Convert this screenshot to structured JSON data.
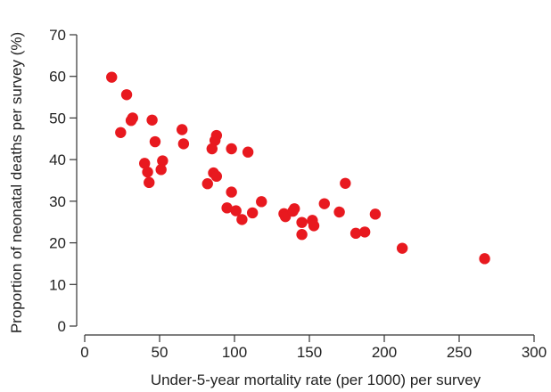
{
  "chart_data": {
    "type": "scatter",
    "title": "",
    "xlabel": "Under-5-year mortality rate (per 1000)  per survey",
    "ylabel": "Proportion of neonatal deaths per survey (%)",
    "xlim": [
      0,
      300
    ],
    "ylim": [
      0,
      70
    ],
    "xticks": [
      0,
      50,
      100,
      150,
      200,
      250,
      300
    ],
    "yticks": [
      0,
      10,
      20,
      30,
      40,
      50,
      60,
      70
    ],
    "grid": false,
    "marker_color": "#e8191f",
    "points": [
      {
        "x": 18,
        "y": 59.8
      },
      {
        "x": 28,
        "y": 55.6
      },
      {
        "x": 24,
        "y": 46.5
      },
      {
        "x": 31,
        "y": 49.4
      },
      {
        "x": 32,
        "y": 50.0
      },
      {
        "x": 45,
        "y": 49.5
      },
      {
        "x": 47,
        "y": 44.3
      },
      {
        "x": 40,
        "y": 39.1
      },
      {
        "x": 42,
        "y": 37.0
      },
      {
        "x": 43,
        "y": 34.5
      },
      {
        "x": 52,
        "y": 39.7
      },
      {
        "x": 51,
        "y": 37.6
      },
      {
        "x": 65,
        "y": 47.2
      },
      {
        "x": 66,
        "y": 43.8
      },
      {
        "x": 88,
        "y": 45.8
      },
      {
        "x": 87,
        "y": 44.6
      },
      {
        "x": 85,
        "y": 42.6
      },
      {
        "x": 98,
        "y": 42.6
      },
      {
        "x": 109,
        "y": 41.8
      },
      {
        "x": 86,
        "y": 36.8
      },
      {
        "x": 88,
        "y": 36.0
      },
      {
        "x": 82,
        "y": 34.2
      },
      {
        "x": 98,
        "y": 32.2
      },
      {
        "x": 95,
        "y": 28.4
      },
      {
        "x": 101,
        "y": 27.7
      },
      {
        "x": 105,
        "y": 25.6
      },
      {
        "x": 112,
        "y": 27.2
      },
      {
        "x": 118,
        "y": 29.9
      },
      {
        "x": 133,
        "y": 27.0
      },
      {
        "x": 134,
        "y": 26.3
      },
      {
        "x": 140,
        "y": 28.2
      },
      {
        "x": 139,
        "y": 27.6
      },
      {
        "x": 145,
        "y": 24.9
      },
      {
        "x": 145,
        "y": 22.0
      },
      {
        "x": 152,
        "y": 25.4
      },
      {
        "x": 153,
        "y": 24.1
      },
      {
        "x": 160,
        "y": 29.4
      },
      {
        "x": 170,
        "y": 27.4
      },
      {
        "x": 174,
        "y": 34.3
      },
      {
        "x": 181,
        "y": 22.3
      },
      {
        "x": 187,
        "y": 22.6
      },
      {
        "x": 194,
        "y": 26.9
      },
      {
        "x": 212,
        "y": 18.7
      },
      {
        "x": 267,
        "y": 16.2
      }
    ]
  }
}
